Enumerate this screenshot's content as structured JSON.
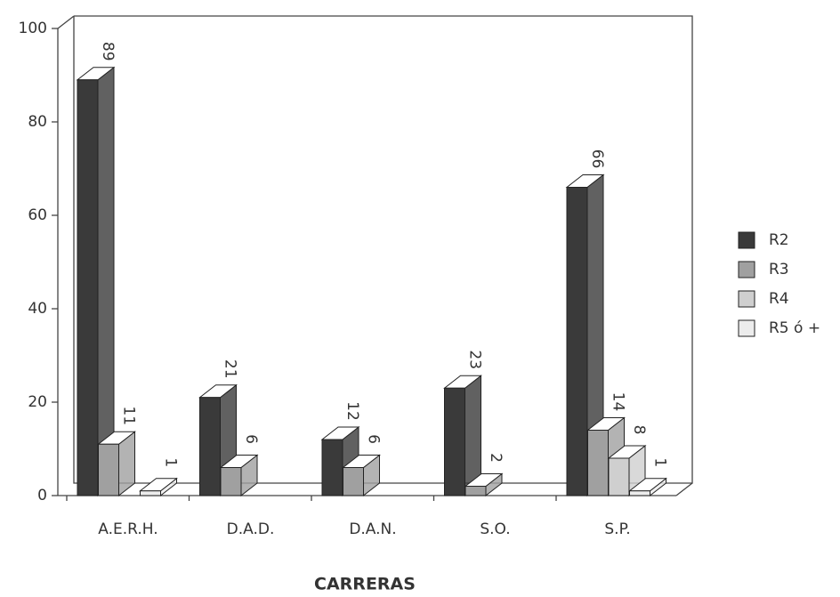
{
  "chart_data": {
    "type": "bar3d",
    "xlabel": "CARRERAS",
    "categories": [
      "A.E.R.H.",
      "D.A.D.",
      "D.A.N.",
      "S.O.",
      "S.P."
    ],
    "series": [
      {
        "name": "R2",
        "color": "#3a3a3a",
        "values": [
          89,
          21,
          12,
          23,
          66
        ]
      },
      {
        "name": "R3",
        "color": "#a0a0a0",
        "values": [
          11,
          6,
          6,
          2,
          14
        ]
      },
      {
        "name": "R4",
        "color": "#cfcfcf",
        "values": [
          null,
          null,
          null,
          null,
          8
        ]
      },
      {
        "name": "R5 ó +",
        "color": "#ececec",
        "values": [
          1,
          null,
          null,
          null,
          1
        ]
      }
    ],
    "ylim": [
      0,
      100
    ],
    "yticks": [
      0,
      20,
      40,
      60,
      80,
      100
    ],
    "legend": "right"
  }
}
